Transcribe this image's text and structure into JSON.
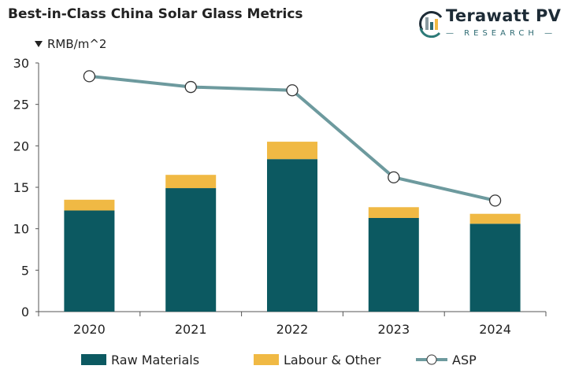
{
  "title": "Best-in-Class China Solar Glass Metrics",
  "logo": {
    "name": "Terawatt PV",
    "sub": "— RESEARCH —"
  },
  "colors": {
    "raw": "#0c5961",
    "labour": "#f0b944",
    "asp": "#6d9a9e"
  },
  "chart_data": {
    "type": "bar",
    "title": "Best-in-Class China Solar Glass Metrics",
    "ylabel": "RMB/m^2",
    "xlabel": "",
    "ylim": [
      0,
      30
    ],
    "yticks": [
      0,
      5,
      10,
      15,
      20,
      25,
      30
    ],
    "categories": [
      "2020",
      "2021",
      "2022",
      "2023",
      "2024"
    ],
    "series": [
      {
        "name": "Raw Materials",
        "kind": "stacked-bar",
        "values": [
          12.2,
          14.9,
          18.4,
          11.3,
          10.6
        ]
      },
      {
        "name": "Labour & Other",
        "kind": "stacked-bar",
        "values": [
          1.3,
          1.6,
          2.1,
          1.3,
          1.2
        ]
      },
      {
        "name": "ASP",
        "kind": "line",
        "values": [
          28.4,
          27.1,
          26.7,
          16.2,
          13.4
        ]
      }
    ],
    "legend": "bottom",
    "grid": false
  }
}
